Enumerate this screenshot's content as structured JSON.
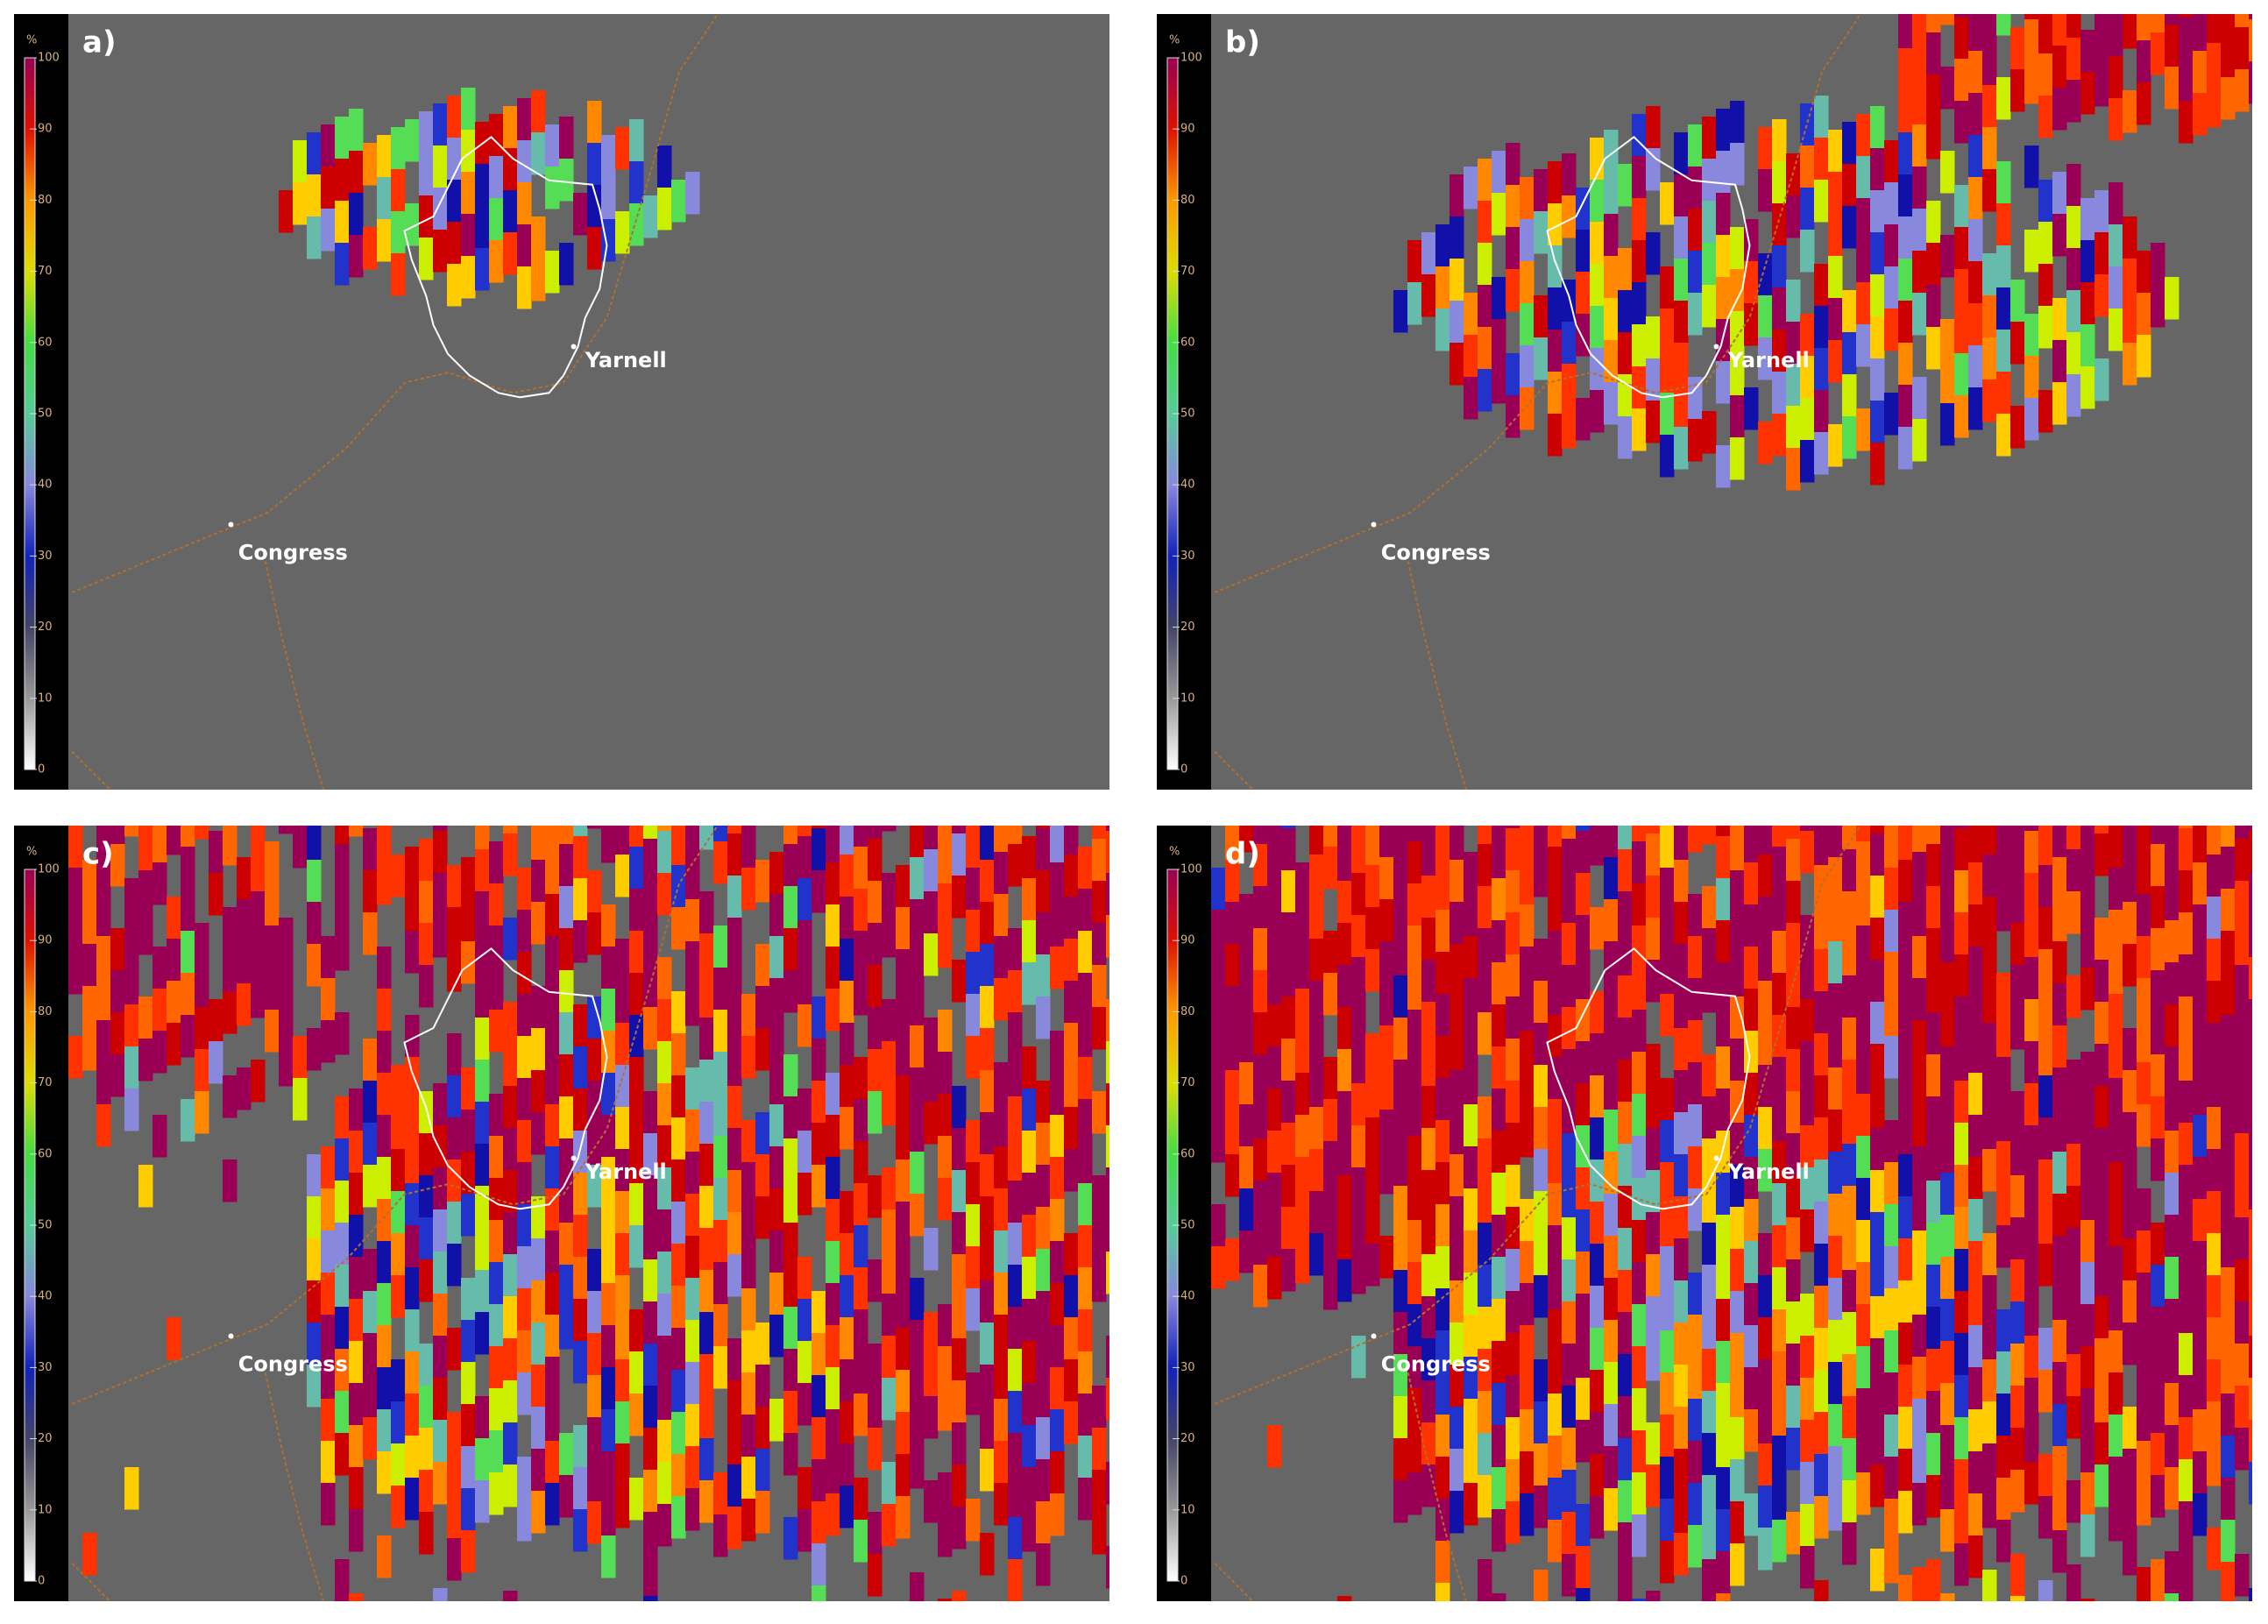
{
  "panels": [
    {
      "label": "a)",
      "colorbar": {
        "unit": "%",
        "ticks": [
          0,
          10,
          20,
          30,
          40,
          50,
          60,
          70,
          80,
          90,
          100
        ]
      },
      "places": [
        "Yarnell",
        "Congress"
      ]
    },
    {
      "label": "b)",
      "colorbar": {
        "unit": "%",
        "ticks": [
          0,
          10,
          20,
          30,
          40,
          50,
          60,
          70,
          80,
          90,
          100
        ]
      },
      "places": [
        "Yarnell",
        "Congress"
      ]
    },
    {
      "label": "c)",
      "colorbar": {
        "unit": "%",
        "ticks": [
          0,
          10,
          20,
          30,
          40,
          50,
          60,
          70,
          80,
          90,
          100
        ]
      },
      "places": [
        "Yarnell",
        "Congress"
      ]
    },
    {
      "label": "d)",
      "colorbar": {
        "unit": "%",
        "ticks": [
          0,
          10,
          20,
          30,
          40,
          50,
          60,
          70,
          80,
          90,
          100
        ]
      },
      "places": [
        "Yarnell",
        "Congress"
      ]
    }
  ]
}
